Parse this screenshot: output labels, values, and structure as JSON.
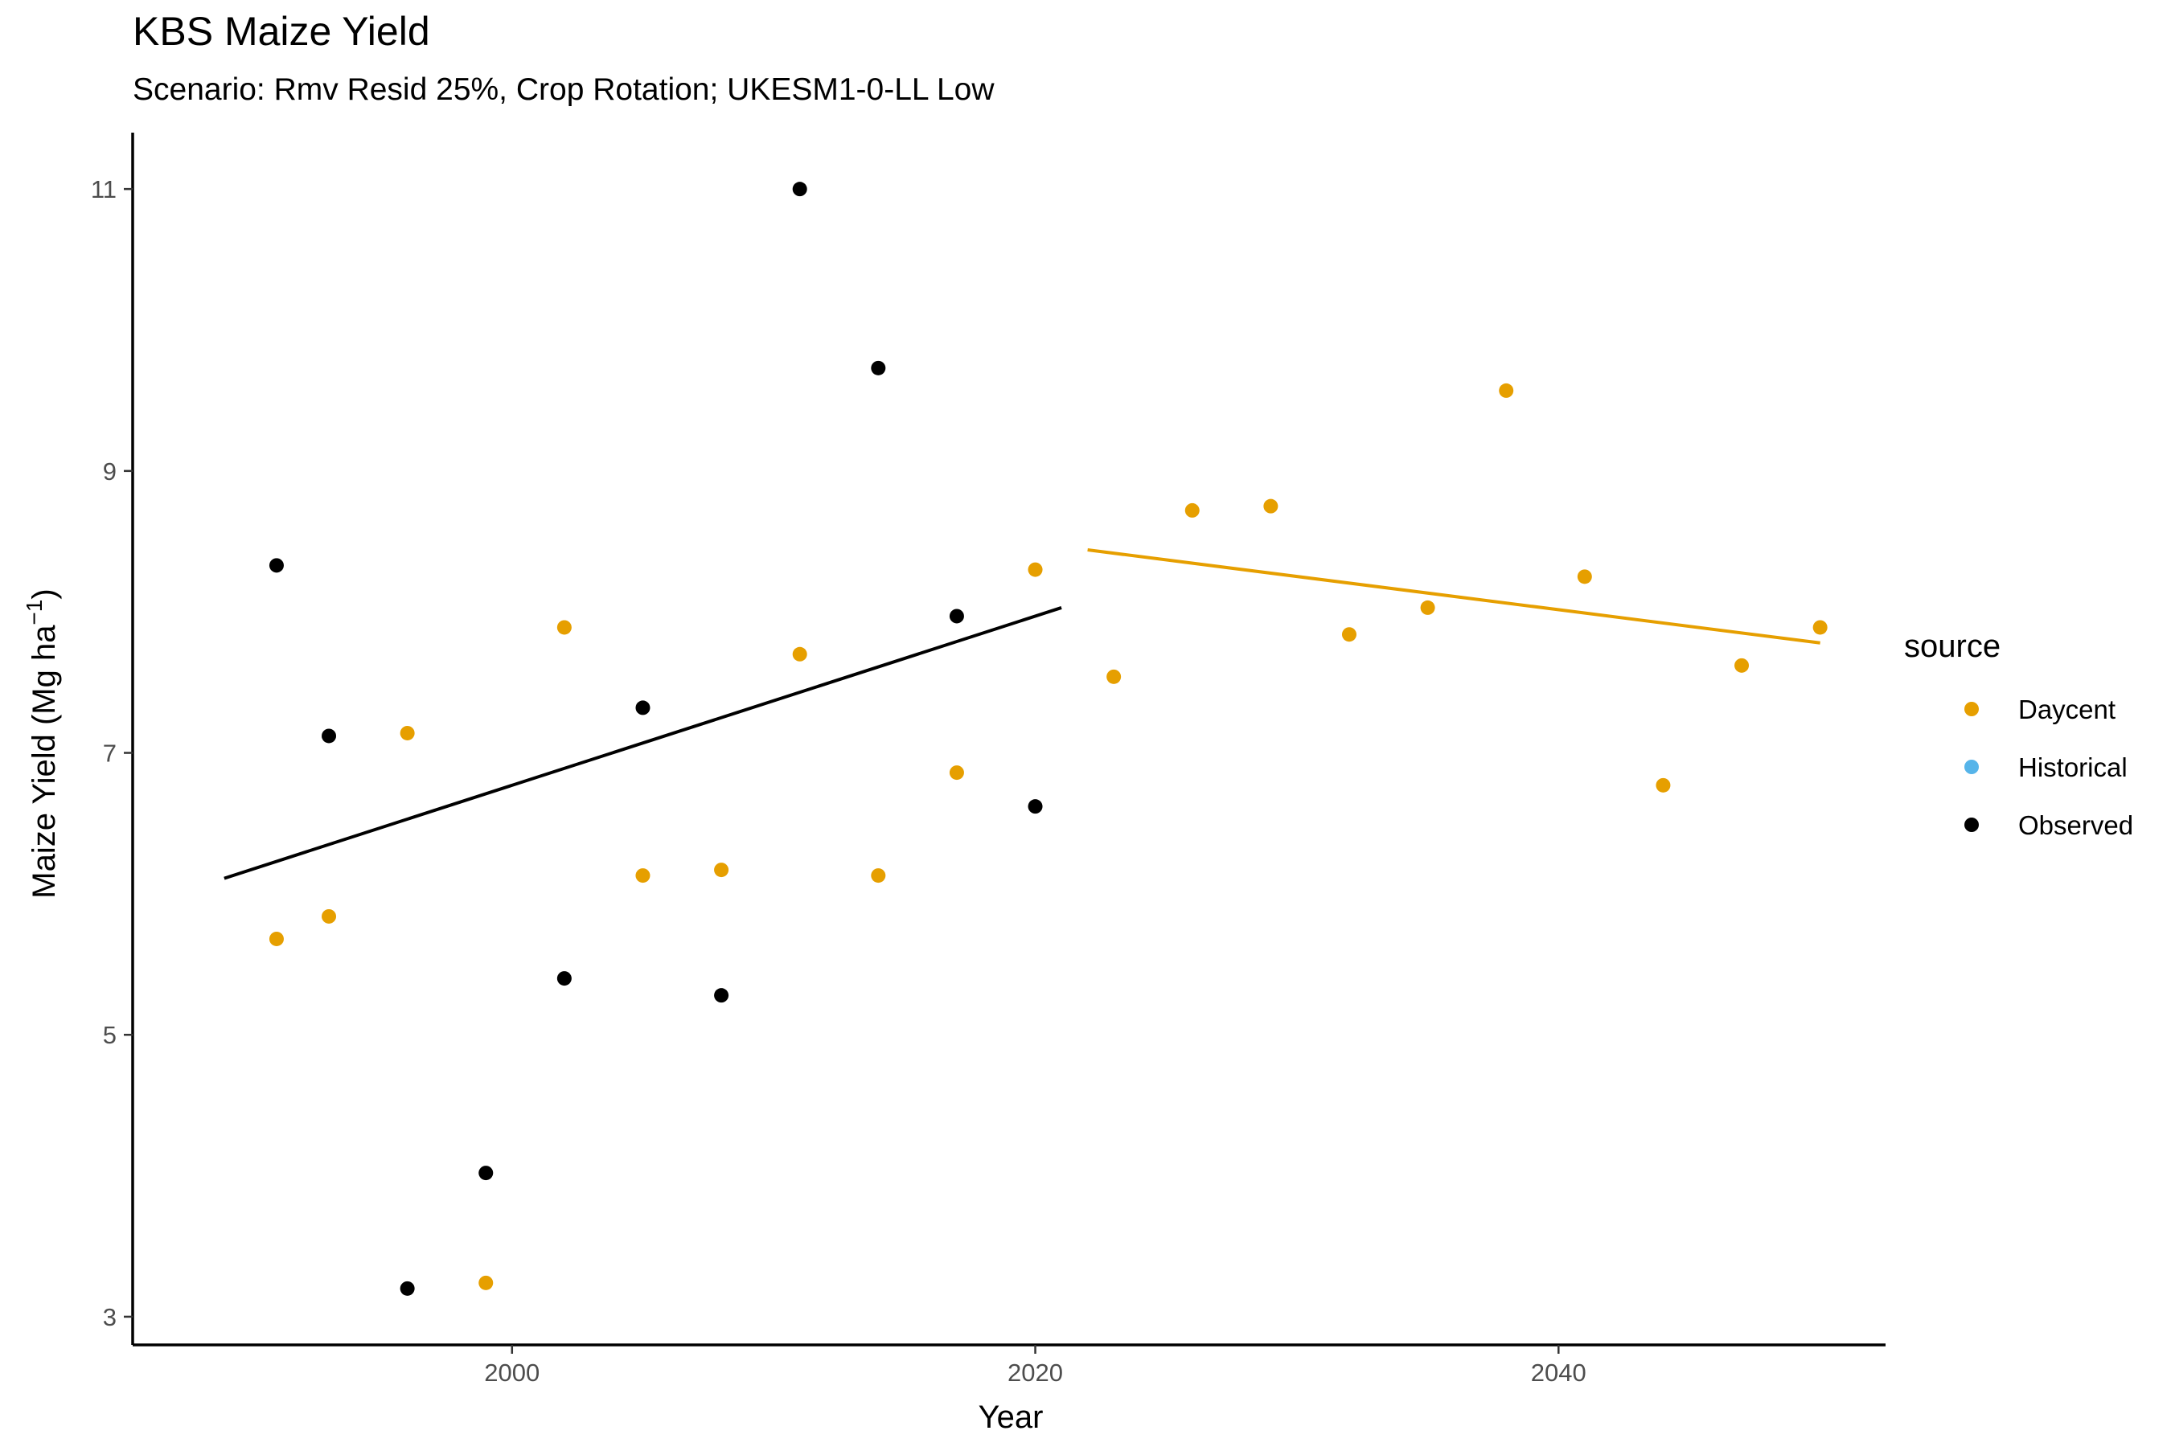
{
  "title": "KBS Maize Yield",
  "subtitle": "Scenario: Rmv Resid 25%, Crop Rotation; UKESM1-0-LL Low",
  "chart_data": {
    "type": "scatter",
    "title": "KBS Maize Yield",
    "subtitle": "Scenario: Rmv Resid 25%, Crop Rotation; UKESM1-0-LL Low",
    "xlabel": "Year",
    "ylabel": "Maize Yield (Mg ha",
    "ylabel_superscript": "−1",
    "ylabel_close": ")",
    "xlim": [
      1985.5,
      2052.5
    ],
    "ylim": [
      2.8,
      11.4
    ],
    "x_ticks": [
      2000,
      2020,
      2040
    ],
    "y_ticks": [
      3,
      5,
      7,
      9,
      11
    ],
    "grid": false,
    "legend": {
      "title": "source",
      "position": "right",
      "entries": [
        {
          "label": "Daycent",
          "color": "#E69F00"
        },
        {
          "label": "Historical",
          "color": "#56B4E9"
        },
        {
          "label": "Observed",
          "color": "#000000"
        }
      ]
    },
    "series": [
      {
        "name": "Observed",
        "color": "#000000",
        "points": [
          {
            "x": 1991,
            "y": 8.33
          },
          {
            "x": 1993,
            "y": 7.12
          },
          {
            "x": 1996,
            "y": 3.2
          },
          {
            "x": 1999,
            "y": 4.02
          },
          {
            "x": 2002,
            "y": 5.4
          },
          {
            "x": 2005,
            "y": 7.32
          },
          {
            "x": 2008,
            "y": 5.28
          },
          {
            "x": 2011,
            "y": 11.0
          },
          {
            "x": 2014,
            "y": 9.73
          },
          {
            "x": 2017,
            "y": 7.97
          },
          {
            "x": 2020,
            "y": 6.62
          }
        ],
        "trend": {
          "x": [
            1989,
            2021
          ],
          "y": [
            6.11,
            8.03
          ]
        }
      },
      {
        "name": "Daycent",
        "color": "#E69F00",
        "points": [
          {
            "x": 1991,
            "y": 5.68
          },
          {
            "x": 1993,
            "y": 5.84
          },
          {
            "x": 1996,
            "y": 7.14
          },
          {
            "x": 1999,
            "y": 3.24
          },
          {
            "x": 2002,
            "y": 7.89
          },
          {
            "x": 2005,
            "y": 6.13
          },
          {
            "x": 2008,
            "y": 6.17
          },
          {
            "x": 2011,
            "y": 7.7
          },
          {
            "x": 2014,
            "y": 6.13
          },
          {
            "x": 2017,
            "y": 6.86
          },
          {
            "x": 2020,
            "y": 8.3
          },
          {
            "x": 2023,
            "y": 7.54
          },
          {
            "x": 2026,
            "y": 8.72
          },
          {
            "x": 2029,
            "y": 8.75
          },
          {
            "x": 2032,
            "y": 7.84
          },
          {
            "x": 2035,
            "y": 8.03
          },
          {
            "x": 2038,
            "y": 9.57
          },
          {
            "x": 2041,
            "y": 8.25
          },
          {
            "x": 2044,
            "y": 6.77
          },
          {
            "x": 2047,
            "y": 7.62
          },
          {
            "x": 2050,
            "y": 7.89
          }
        ],
        "trend": {
          "x": [
            2022,
            2050
          ],
          "y": [
            8.44,
            7.78
          ]
        }
      }
    ]
  }
}
